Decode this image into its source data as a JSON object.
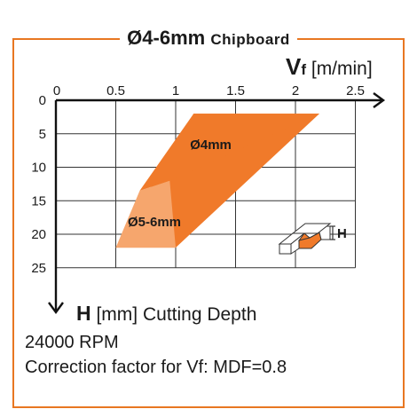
{
  "title": {
    "main": "Ø4-6mm",
    "sub": "Chipboard"
  },
  "x_axis": {
    "symbol": "V",
    "subscript": "f",
    "unit": "[m/min]"
  },
  "y_axis": {
    "symbol": "H",
    "unit": "[mm]",
    "description": "Cutting Depth"
  },
  "footer": {
    "rpm": "24000 RPM",
    "correction": "Correction factor for Vf: MDF=0.8"
  },
  "icon": {
    "label": "H",
    "name": "router-bit-groove-icon"
  },
  "colors": {
    "frame": "#e87722",
    "band": "#f07a2a",
    "band_light": "#f6a66d",
    "grid": "#333333"
  },
  "chart_data": {
    "type": "area",
    "x_ticks": [
      "0",
      "0.5",
      "1",
      "1.5",
      "2",
      "2.5"
    ],
    "y_ticks": [
      "0",
      "5",
      "10",
      "15",
      "20",
      "25"
    ],
    "xlim": [
      0,
      2.7
    ],
    "ylim": [
      0,
      26
    ],
    "x_inverted_axis_on_top": true,
    "y_inverted": true,
    "grid": true,
    "regions": [
      {
        "name": "Ø4mm",
        "boundary": [
          [
            1.15,
            2
          ],
          [
            2.2,
            2
          ],
          [
            0.95,
            12
          ],
          [
            0.7,
            13.5
          ],
          [
            0.7,
            13.5
          ]
        ]
      },
      {
        "name": "Ø5-6mm",
        "boundary": [
          [
            0.7,
            13.5
          ],
          [
            0.95,
            12
          ],
          [
            1.0,
            22
          ],
          [
            0.5,
            22
          ]
        ]
      }
    ],
    "band_outline": [
      [
        1.15,
        2
      ],
      [
        2.2,
        2
      ],
      [
        1.0,
        22
      ],
      [
        0.5,
        22
      ]
    ]
  }
}
